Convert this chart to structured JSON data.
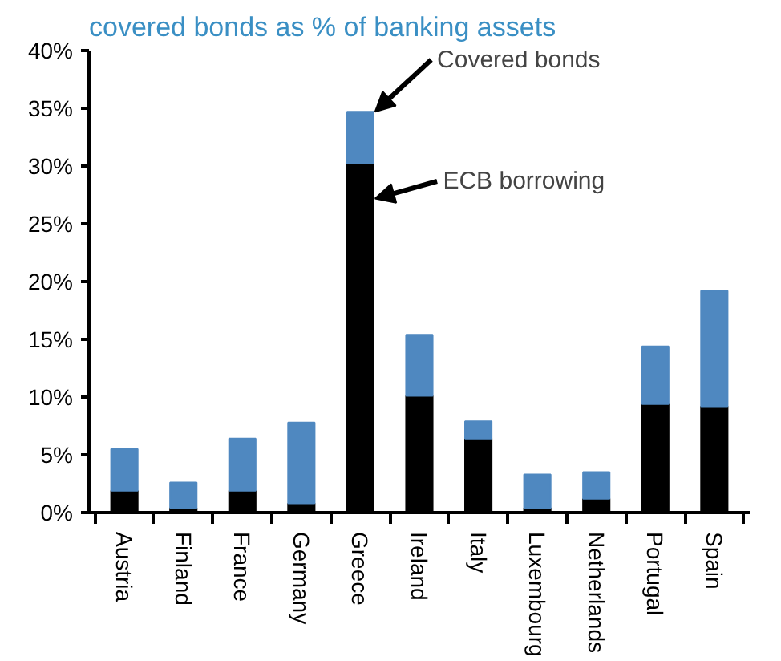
{
  "chart_data": {
    "type": "bar",
    "title": "covered bonds as % of banking assets",
    "categories": [
      "Austria",
      "Finland",
      "France",
      "Germany",
      "Greece",
      "Ireland",
      "Italy",
      "Luxembourg",
      "Netherlands",
      "Portugal",
      "Spain"
    ],
    "stacked": true,
    "series": [
      {
        "name": "ECB borrowing",
        "color": "#000000",
        "values": [
          1.9,
          0.4,
          1.9,
          0.8,
          30.2,
          10.1,
          6.4,
          0.4,
          1.2,
          9.4,
          9.2
        ]
      },
      {
        "name": "Covered bonds",
        "color": "#4f88c0",
        "values": [
          3.6,
          2.2,
          4.5,
          7.0,
          4.5,
          5.3,
          1.5,
          2.9,
          2.3,
          5.0,
          10.0
        ]
      }
    ],
    "ylim": [
      0,
      40
    ],
    "yticks": [
      {
        "value": 0,
        "label": "0%"
      },
      {
        "value": 5,
        "label": "5%"
      },
      {
        "value": 10,
        "label": "10%"
      },
      {
        "value": 15,
        "label": "15%"
      },
      {
        "value": 20,
        "label": "20%"
      },
      {
        "value": 25,
        "label": "25%"
      },
      {
        "value": 30,
        "label": "30%"
      },
      {
        "value": 35,
        "label": "35%"
      },
      {
        "value": 40,
        "label": "40%"
      }
    ],
    "grid": false,
    "legend": "top right"
  }
}
